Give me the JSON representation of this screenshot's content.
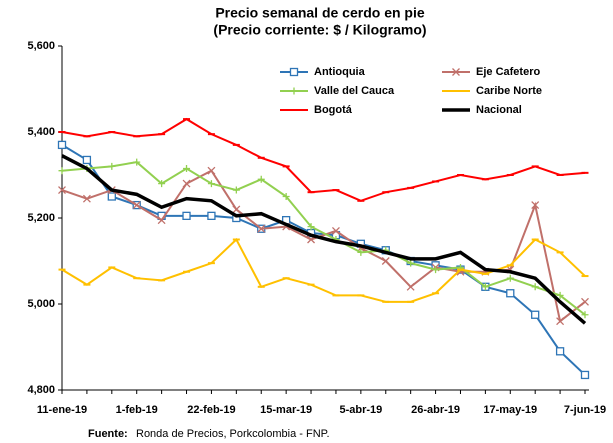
{
  "chart_data": {
    "type": "line",
    "title": "Precio semanal de cerdo en pie",
    "subtitle": "(Precio corriente: $ / Kilogramo)",
    "categories": [
      "11-ene-19",
      null,
      null,
      "1-feb-19",
      null,
      null,
      "22-feb-19",
      null,
      null,
      "15-mar-19",
      null,
      null,
      "5-abr-19",
      null,
      null,
      "26-abr-19",
      null,
      null,
      "17-may-19",
      null,
      null,
      "7-jun-19"
    ],
    "ylim": [
      4800,
      5600
    ],
    "yticks": [
      {
        "value": 4800,
        "label": "4,800"
      },
      {
        "value": 5000,
        "label": "5,000"
      },
      {
        "value": 5200,
        "label": "5,200"
      },
      {
        "value": 5400,
        "label": "5,400"
      },
      {
        "value": 5600,
        "label": "5,600"
      }
    ],
    "series": [
      {
        "name": "Antioquia",
        "color": "#2e75b6",
        "marker": "square",
        "values": [
          5370,
          5335,
          5250,
          5230,
          5205,
          5205,
          5205,
          5200,
          5175,
          5195,
          5165,
          5160,
          5140,
          5125,
          5100,
          5090,
          5080,
          5040,
          5025,
          4975,
          4890,
          4835
        ]
      },
      {
        "name": "Eje Cafetero",
        "color": "#c0706a",
        "marker": "x",
        "values": [
          5265,
          5245,
          5265,
          5230,
          5195,
          5280,
          5310,
          5220,
          5175,
          5180,
          5150,
          5170,
          5130,
          5100,
          5040,
          5085,
          5075,
          5075,
          5080,
          5230,
          4960,
          5005
        ]
      },
      {
        "name": "Valle del Cauca",
        "color": "#92d050",
        "marker": "plus",
        "values": [
          5310,
          5315,
          5320,
          5330,
          5280,
          5315,
          5280,
          5265,
          5290,
          5250,
          5180,
          5150,
          5120,
          5125,
          5095,
          5080,
          5085,
          5040,
          5060,
          5040,
          5020,
          4975
        ]
      },
      {
        "name": "Caribe Norte",
        "color": "#ffc000",
        "marker": "dash",
        "values": [
          5080,
          5045,
          5085,
          5060,
          5055,
          5075,
          5095,
          5150,
          5040,
          5060,
          5045,
          5020,
          5020,
          5005,
          5005,
          5025,
          5080,
          5070,
          5090,
          5150,
          5120,
          5065
        ]
      },
      {
        "name": "Bogotá",
        "color": "#ff0000",
        "marker": "dash",
        "values": [
          5400,
          5390,
          5400,
          5390,
          5395,
          5430,
          5395,
          5370,
          5340,
          5320,
          5260,
          5265,
          5240,
          5260,
          5270,
          5285,
          5300,
          5290,
          5300,
          5320,
          5300,
          5305
        ]
      },
      {
        "name": "Nacional",
        "color": "#000000",
        "marker": "none",
        "width": 3.5,
        "values": [
          5345,
          5315,
          5265,
          5255,
          5225,
          5245,
          5240,
          5205,
          5210,
          5185,
          5160,
          5145,
          5135,
          5120,
          5105,
          5105,
          5120,
          5080,
          5075,
          5060,
          5005,
          4955
        ]
      }
    ],
    "source_label": "Fuente:",
    "source": "Ronda de Precios, Porkcolombia  - FNP."
  }
}
